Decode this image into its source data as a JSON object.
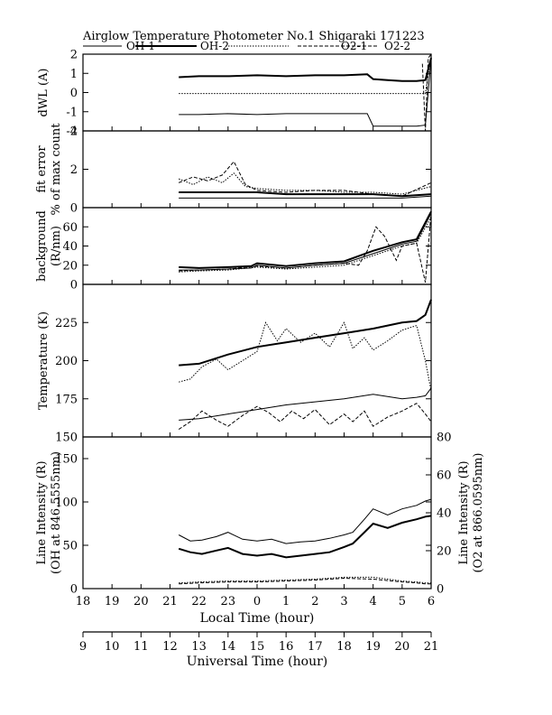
{
  "chart_data": {
    "type": "line",
    "title": "Airglow Temperature Photometer No.1  Shigaraki   171223",
    "legend": [
      {
        "name": "OH-1",
        "style": "solid-thin"
      },
      {
        "name": "OH-2",
        "style": "solid-thick"
      },
      {
        "name": "O2-1",
        "style": "dotted"
      },
      {
        "name": "O2-2",
        "style": "dashed"
      }
    ],
    "x_local": {
      "label": "Local Time (hour)",
      "ticks": [
        "18",
        "19",
        "20",
        "21",
        "22",
        "23",
        "0",
        "1",
        "2",
        "3",
        "4",
        "5",
        "6"
      ],
      "range": [
        18,
        30
      ]
    },
    "x_universal": {
      "label": "Universal Time (hour)",
      "ticks": [
        "9",
        "10",
        "11",
        "12",
        "13",
        "14",
        "15",
        "16",
        "17",
        "18",
        "19",
        "20",
        "21"
      ],
      "range": [
        9,
        21
      ]
    },
    "panels": [
      {
        "id": "dwl",
        "ylabel": [
          "dWL (A)"
        ],
        "ylim": [
          -2,
          2
        ],
        "yticks": [
          "2",
          "1",
          "0",
          "-1",
          "-2"
        ],
        "series": [
          {
            "name": "OH-1",
            "x": [
              21.3,
              22,
              23,
              24,
              25,
              26,
              27,
              27.8,
              28,
              28.5,
              29,
              29.5,
              29.8,
              30
            ],
            "y": [
              -1.15,
              -1.15,
              -1.1,
              -1.15,
              -1.1,
              -1.1,
              -1.1,
              -1.1,
              -1.75,
              -1.75,
              -1.75,
              -1.75,
              -1.7,
              1.8
            ]
          },
          {
            "name": "OH-2",
            "x": [
              21.3,
              22,
              23,
              24,
              25,
              26,
              27,
              27.8,
              28,
              28.5,
              29,
              29.5,
              29.8,
              30
            ],
            "y": [
              0.8,
              0.85,
              0.85,
              0.9,
              0.85,
              0.9,
              0.9,
              0.95,
              0.7,
              0.65,
              0.6,
              0.6,
              0.65,
              1.8
            ]
          },
          {
            "name": "O2-1",
            "x": [
              21.3,
              22,
              23,
              24,
              25,
              26,
              27,
              28,
              29,
              29.5,
              29.8,
              30
            ],
            "y": [
              -0.05,
              -0.05,
              -0.05,
              -0.05,
              -0.05,
              -0.05,
              -0.05,
              -0.05,
              -0.05,
              -0.05,
              -0.05,
              1.9
            ]
          },
          {
            "name": "O2-2",
            "x": [
              29.7,
              29.8,
              29.9,
              30
            ],
            "y": [
              1.5,
              -2,
              1.8,
              2
            ]
          }
        ]
      },
      {
        "id": "fit_error",
        "ylabel": [
          "fit error",
          "% of max count"
        ],
        "ylim": [
          0,
          4
        ],
        "yticks": [
          "4",
          "2",
          "0"
        ],
        "series": [
          {
            "name": "OH-1",
            "x": [
              21.3,
              22,
              23,
              24,
              25,
              26,
              27,
              28,
              29,
              30
            ],
            "y": [
              0.5,
              0.5,
              0.5,
              0.5,
              0.5,
              0.5,
              0.5,
              0.5,
              0.5,
              0.6
            ]
          },
          {
            "name": "OH-2",
            "x": [
              21.3,
              22,
              23,
              24,
              25,
              26,
              27,
              28,
              29,
              30
            ],
            "y": [
              0.8,
              0.8,
              0.8,
              0.8,
              0.7,
              0.7,
              0.7,
              0.7,
              0.6,
              0.7
            ]
          },
          {
            "name": "O2-1",
            "x": [
              21.3,
              21.8,
              22.3,
              22.8,
              23.2,
              23.6,
              24,
              25,
              26,
              27,
              28,
              29,
              30
            ],
            "y": [
              1.5,
              1.2,
              1.6,
              1.3,
              1.8,
              1.1,
              1,
              0.9,
              0.9,
              0.8,
              0.8,
              0.7,
              1.1
            ]
          },
          {
            "name": "O2-2",
            "x": [
              21.3,
              21.8,
              22.3,
              22.8,
              23.2,
              23.6,
              24,
              25,
              26,
              27,
              28,
              29,
              30
            ],
            "y": [
              1.3,
              1.6,
              1.4,
              1.7,
              2.4,
              1.2,
              0.9,
              0.8,
              0.9,
              0.9,
              0.7,
              0.6,
              1.3
            ]
          }
        ]
      },
      {
        "id": "background",
        "ylabel": [
          "background",
          "(R/nm)"
        ],
        "ylim": [
          0,
          80
        ],
        "yticks": [
          "60",
          "40",
          "20",
          "0"
        ],
        "series": [
          {
            "name": "OH-1",
            "x": [
              21.3,
              22,
              23,
              23.8,
              24,
              25,
              26,
              27,
              28,
              29,
              29.5,
              30
            ],
            "y": [
              15,
              15,
              16,
              17,
              20,
              17,
              20,
              22,
              32,
              42,
              45,
              74
            ]
          },
          {
            "name": "OH-2",
            "x": [
              21.3,
              22,
              23,
              23.8,
              24,
              25,
              26,
              27,
              28,
              29,
              29.5,
              30
            ],
            "y": [
              18,
              17,
              18,
              19,
              22,
              19,
              22,
              24,
              35,
              44,
              47,
              76
            ]
          },
          {
            "name": "O2-1",
            "x": [
              21.3,
              22,
              23,
              24,
              25,
              26,
              27,
              28,
              29,
              29.5,
              30
            ],
            "y": [
              13,
              14,
              15,
              18,
              16,
              18,
              20,
              30,
              40,
              43,
              70
            ]
          },
          {
            "name": "O2-2",
            "x": [
              21.3,
              22,
              23,
              24,
              25,
              26,
              27,
              27.5,
              27.8,
              28.1,
              28.4,
              28.8,
              29,
              29.5,
              29.8,
              30
            ],
            "y": [
              14,
              15,
              16,
              19,
              17,
              20,
              22,
              20,
              35,
              60,
              50,
              25,
              40,
              43,
              2,
              75
            ]
          }
        ]
      },
      {
        "id": "temperature",
        "ylabel": [
          "Temperature (K)"
        ],
        "ylim": [
          150,
          250
        ],
        "yticks": [
          "225",
          "200",
          "175",
          "150"
        ],
        "series": [
          {
            "name": "OH-1",
            "x": [
              21.3,
              22,
              23,
              24,
              25,
              26,
              27,
              28,
              29,
              29.5,
              29.8,
              30
            ],
            "y": [
              161,
              162,
              165,
              168,
              171,
              173,
              175,
              178,
              175,
              176,
              177,
              182
            ]
          },
          {
            "name": "OH-2",
            "x": [
              21.3,
              22,
              23,
              24,
              25,
              26,
              27,
              28,
              29,
              29.5,
              29.8,
              30
            ],
            "y": [
              197,
              198,
              204,
              209,
              212,
              215,
              218,
              221,
              225,
              226,
              230,
              240
            ]
          },
          {
            "name": "O2-1",
            "x": [
              21.3,
              21.7,
              22.1,
              22.6,
              23,
              23.5,
              24,
              24.3,
              24.7,
              25,
              25.5,
              26,
              26.5,
              27,
              27.3,
              27.7,
              28,
              28.5,
              29,
              29.5,
              29.8,
              30
            ],
            "y": [
              186,
              188,
              196,
              201,
              194,
              200,
              206,
              225,
              213,
              221,
              212,
              218,
              209,
              225,
              208,
              215,
              207,
              213,
              220,
              223,
              200,
              180
            ]
          },
          {
            "name": "O2-2",
            "x": [
              21.3,
              21.7,
              22.1,
              22.6,
              23,
              23.5,
              24,
              24.4,
              24.8,
              25.2,
              25.6,
              26,
              26.5,
              27,
              27.3,
              27.7,
              28,
              28.5,
              29,
              29.5,
              29.8,
              30
            ],
            "y": [
              155,
              160,
              167,
              161,
              157,
              164,
              170,
              166,
              160,
              167,
              162,
              168,
              158,
              165,
              160,
              167,
              157,
              163,
              167,
              172,
              165,
              160
            ]
          }
        ]
      },
      {
        "id": "line_intensity",
        "ylabel": [
          "Line Intensity (R)",
          "(OH at 846.5555nm)"
        ],
        "ylabel_right": [
          "Line Intensity (R)",
          "(O2 at 866.0595nm)"
        ],
        "ylim": [
          0,
          175
        ],
        "yticks": [
          "150",
          "100",
          "50",
          "0"
        ],
        "ylim_right": [
          0,
          80
        ],
        "yticks_right": [
          "80",
          "60",
          "40",
          "20",
          "0"
        ],
        "series": [
          {
            "name": "OH-1",
            "axis": "left",
            "x": [
              21.3,
              21.7,
              22.1,
              22.6,
              23,
              23.5,
              24,
              24.5,
              25,
              25.5,
              26,
              26.5,
              27,
              27.3,
              27.7,
              28,
              28.5,
              29,
              29.5,
              29.8,
              30
            ],
            "y": [
              62,
              55,
              56,
              60,
              65,
              57,
              55,
              57,
              52,
              54,
              55,
              58,
              62,
              65,
              80,
              92,
              85,
              92,
              96,
              101,
              103
            ]
          },
          {
            "name": "OH-2",
            "axis": "left",
            "x": [
              21.3,
              21.7,
              22.1,
              22.6,
              23,
              23.5,
              24,
              24.5,
              25,
              25.5,
              26,
              26.5,
              27,
              27.3,
              27.7,
              28,
              28.5,
              29,
              29.5,
              29.8,
              30
            ],
            "y": [
              46,
              42,
              40,
              44,
              47,
              40,
              38,
              40,
              36,
              38,
              40,
              42,
              48,
              52,
              65,
              75,
              70,
              76,
              80,
              83,
              84
            ]
          },
          {
            "name": "O2-1",
            "axis": "right",
            "x": [
              21.3,
              22,
              23,
              24,
              25,
              26,
              27,
              28,
              29,
              29.5,
              29.8,
              30
            ],
            "y": [
              3,
              3.5,
              4,
              4,
              4.5,
              5,
              6,
              6,
              4,
              3.5,
              3,
              3
            ]
          },
          {
            "name": "O2-2",
            "axis": "right",
            "x": [
              21.3,
              22,
              23,
              24,
              25,
              26,
              27,
              28,
              29,
              29.5,
              29.8,
              30
            ],
            "y": [
              2.5,
              3,
              3.5,
              3.5,
              4,
              4.5,
              5.5,
              5,
              3.5,
              3,
              2.5,
              2.5
            ]
          }
        ]
      }
    ]
  }
}
